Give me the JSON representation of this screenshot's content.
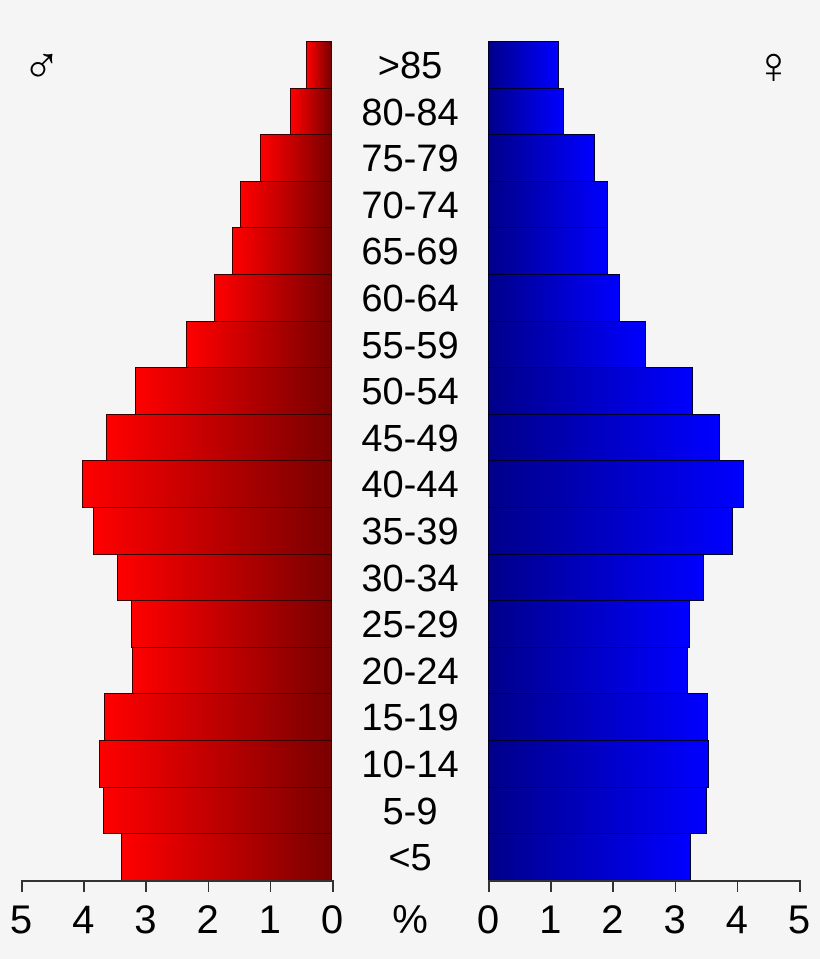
{
  "chart_data": {
    "type": "bar",
    "subtype": "population-pyramid",
    "title": "",
    "xlabel": "%",
    "ylabel": "",
    "categories": [
      ">85",
      "80-84",
      "75-79",
      "70-74",
      "65-69",
      "60-64",
      "55-59",
      "50-54",
      "45-49",
      "40-44",
      "35-39",
      "30-34",
      "25-29",
      "20-24",
      "15-19",
      "10-14",
      "5-9",
      "<5"
    ],
    "series": [
      {
        "name": "Male",
        "symbol": "♂",
        "side": "left",
        "color_outer": "#ff0000",
        "color_inner": "#7a0000",
        "values": [
          0.42,
          0.68,
          1.15,
          1.48,
          1.61,
          1.89,
          2.34,
          3.16,
          3.63,
          4.02,
          3.84,
          3.45,
          3.23,
          3.21,
          3.66,
          3.74,
          3.68,
          3.4
        ]
      },
      {
        "name": "Female",
        "symbol": "♀",
        "side": "right",
        "color_inner": "#00008a",
        "color_outer": "#0000ff",
        "values": [
          1.14,
          1.22,
          1.72,
          1.93,
          1.93,
          2.12,
          2.54,
          3.3,
          3.73,
          4.12,
          3.94,
          3.47,
          3.25,
          3.22,
          3.54,
          3.55,
          3.52,
          3.26
        ]
      }
    ],
    "xlim": [
      0,
      5
    ],
    "x_ticks_left": [
      "5",
      "4",
      "3",
      "2",
      "1",
      "0"
    ],
    "x_ticks_right": [
      "0",
      "1",
      "2",
      "3",
      "4",
      "5"
    ],
    "grid": false,
    "legend": {
      "male_symbol": "♂",
      "female_symbol": "♀",
      "position": "top corners"
    }
  },
  "labels": {
    "male_symbol": "♂",
    "female_symbol": "♀",
    "unit": "%"
  },
  "colors": {
    "background": "#f5f5f5",
    "male_light": "#ff0000",
    "male_dark": "#7a0000",
    "female_dark": "#00008a",
    "female_light": "#0000ff"
  }
}
